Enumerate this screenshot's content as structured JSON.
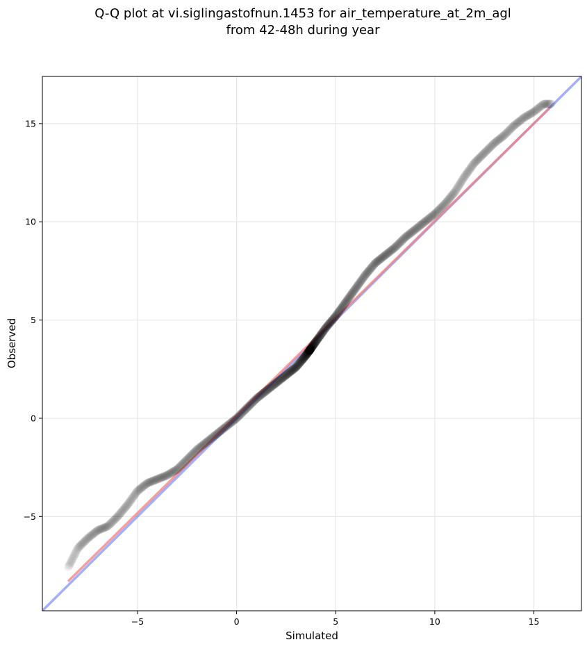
{
  "title_line1": "Q-Q plot at vi.siglingastofnun.1453 for air_temperature_at_2m_agl",
  "title_line2": "from 42-48h during year",
  "chart_data": {
    "type": "scatter",
    "title": "Q-Q plot at vi.siglingastofnun.1453 for air_temperature_at_2m_agl\nfrom 42-48h during year",
    "xlabel": "Simulated",
    "ylabel": "Observed",
    "xlim": [
      -9.8,
      17.4
    ],
    "ylim": [
      -9.8,
      17.4
    ],
    "xticks": [
      -5,
      0,
      5,
      10,
      15
    ],
    "yticks": [
      -5,
      0,
      5,
      10,
      15
    ],
    "xtick_labels": [
      "−5",
      "0",
      "5",
      "10",
      "15"
    ],
    "ytick_labels": [
      "−5",
      "0",
      "5",
      "10",
      "15"
    ],
    "grid": true,
    "colors": {
      "points": "#000000",
      "identity_line": "#6a7bf0",
      "fit_line": "#f08080"
    },
    "identity_line": {
      "from": [
        -9.8,
        -9.8
      ],
      "to": [
        17.4,
        17.4
      ]
    },
    "fit_line": {
      "from": [
        -8.5,
        -8.3
      ],
      "to": [
        15.8,
        15.8
      ]
    },
    "quantile_curve": {
      "x": [
        -8.5,
        -8.0,
        -7.5,
        -7.0,
        -6.5,
        -6.0,
        -5.5,
        -5.0,
        -4.5,
        -4.0,
        -3.5,
        -3.0,
        -2.5,
        -2.0,
        -1.5,
        -1.0,
        -0.5,
        0.0,
        0.5,
        1.0,
        1.5,
        2.0,
        2.5,
        3.0,
        3.5,
        4.0,
        4.5,
        5.0,
        5.5,
        6.0,
        6.5,
        7.0,
        7.5,
        8.0,
        8.5,
        9.0,
        9.5,
        10.0,
        10.5,
        11.0,
        11.5,
        12.0,
        12.5,
        13.0,
        13.5,
        14.0,
        14.5,
        15.0,
        15.5
      ],
      "y": [
        -7.6,
        -6.6,
        -6.1,
        -5.7,
        -5.5,
        -5.0,
        -4.4,
        -3.7,
        -3.3,
        -3.1,
        -2.9,
        -2.6,
        -2.1,
        -1.6,
        -1.2,
        -0.8,
        -0.4,
        0.0,
        0.5,
        1.0,
        1.4,
        1.8,
        2.2,
        2.6,
        3.2,
        3.9,
        4.6,
        5.2,
        5.9,
        6.6,
        7.3,
        7.9,
        8.3,
        8.7,
        9.2,
        9.6,
        10.0,
        10.4,
        10.9,
        11.5,
        12.3,
        13.0,
        13.5,
        14.0,
        14.4,
        14.9,
        15.3,
        15.6,
        16.0
      ]
    },
    "series": [
      {
        "x_range": [
          -8.5,
          15.9
        ],
        "points": 900
      }
    ]
  }
}
